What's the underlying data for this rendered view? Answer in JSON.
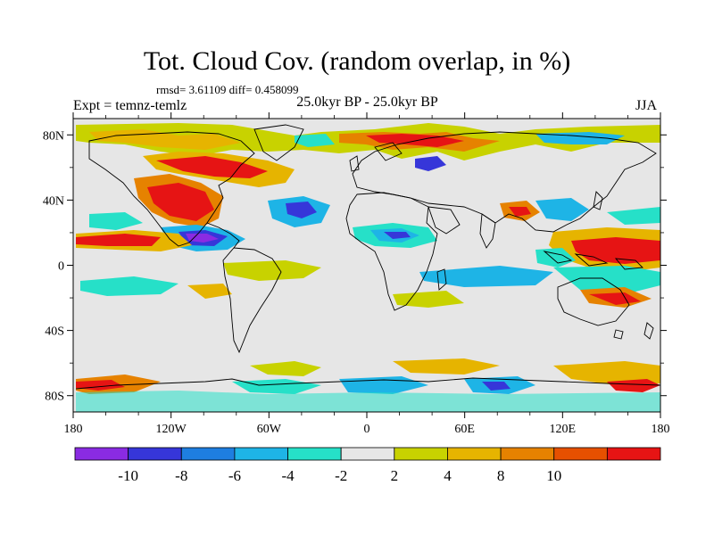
{
  "title": "Tot. Cloud Cov. (random overlap, in %)",
  "stats": "rmsd= 3.61109 diff= 0.458099",
  "experiment": "Expt = temnz-temlz",
  "period": "25.0kyr BP - 25.0kyr BP",
  "season": "JJA",
  "axes": {
    "x_ticks": [
      "180",
      "120W",
      "60W",
      "0",
      "60E",
      "120E",
      "180"
    ],
    "x_values": [
      -180,
      -120,
      -60,
      0,
      60,
      120,
      180
    ],
    "y_ticks": [
      "80N",
      "40N",
      "0",
      "40S",
      "80S"
    ],
    "y_values": [
      80,
      40,
      0,
      -40,
      -80
    ],
    "lon_range": [
      -180,
      180
    ],
    "lat_range": [
      -90,
      90
    ]
  },
  "colorbar": {
    "colors": [
      "#8a2be2",
      "#3636d9",
      "#1e7ee0",
      "#1eb4e6",
      "#26e0c8",
      "#e6e6e6",
      "#c8d200",
      "#e6b400",
      "#e68200",
      "#e65000",
      "#e61414"
    ],
    "labels": [
      "-10",
      "-8",
      "-6",
      "-4",
      "-2",
      "2",
      "4",
      "8",
      "10"
    ]
  },
  "colors": {
    "land_outline": "#000000",
    "background": "#e6e6e6"
  }
}
